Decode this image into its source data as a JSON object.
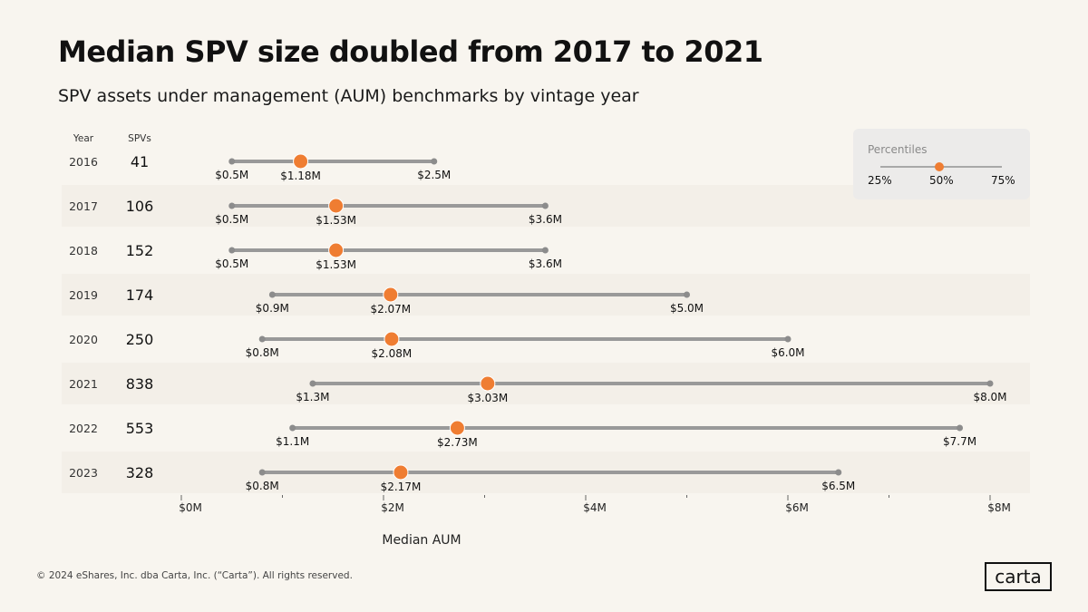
{
  "title": "Median SPV size doubled from 2017 to 2021",
  "subtitle": "SPV assets under management (AUM) benchmarks by vintage year",
  "legend": {
    "title": "Percentiles",
    "labels": [
      "25%",
      "50%",
      "75%"
    ]
  },
  "footer": "© 2024 eShares, Inc. dba Carta, Inc. (“Carta”). All rights reserved.",
  "logo": "carta",
  "colors": {
    "accent": "#ef7d32",
    "range_line": "#999999",
    "row_band": "#f3efe8"
  },
  "chart_data": {
    "type": "range-dot",
    "title": "Median SPV size doubled from 2017 to 2021",
    "subtitle": "SPV assets under management (AUM) benchmarks by vintage year",
    "column_headers": {
      "year": "Year",
      "count": "SPVs"
    },
    "xlabel": "Median AUM",
    "xlim": [
      0,
      8
    ],
    "x_ticks": [
      0,
      2,
      4,
      6,
      8
    ],
    "x_tick_labels": [
      "$0M",
      "$2M",
      "$4M",
      "$6M",
      "$8M"
    ],
    "rows": [
      {
        "year": "2016",
        "spvs": "41",
        "p25": 0.5,
        "p50": 1.18,
        "p75": 2.5,
        "p25_label": "$0.5M",
        "p50_label": "$1.18M",
        "p75_label": "$2.5M"
      },
      {
        "year": "2017",
        "spvs": "106",
        "p25": 0.5,
        "p50": 1.53,
        "p75": 3.6,
        "p25_label": "$0.5M",
        "p50_label": "$1.53M",
        "p75_label": "$3.6M"
      },
      {
        "year": "2018",
        "spvs": "152",
        "p25": 0.5,
        "p50": 1.53,
        "p75": 3.6,
        "p25_label": "$0.5M",
        "p50_label": "$1.53M",
        "p75_label": "$3.6M"
      },
      {
        "year": "2019",
        "spvs": "174",
        "p25": 0.9,
        "p50": 2.07,
        "p75": 5.0,
        "p25_label": "$0.9M",
        "p50_label": "$2.07M",
        "p75_label": "$5.0M"
      },
      {
        "year": "2020",
        "spvs": "250",
        "p25": 0.8,
        "p50": 2.08,
        "p75": 6.0,
        "p25_label": "$0.8M",
        "p50_label": "$2.08M",
        "p75_label": "$6.0M"
      },
      {
        "year": "2021",
        "spvs": "838",
        "p25": 1.3,
        "p50": 3.03,
        "p75": 8.0,
        "p25_label": "$1.3M",
        "p50_label": "$3.03M",
        "p75_label": "$8.0M"
      },
      {
        "year": "2022",
        "spvs": "553",
        "p25": 1.1,
        "p50": 2.73,
        "p75": 7.7,
        "p25_label": "$1.1M",
        "p50_label": "$2.73M",
        "p75_label": "$7.7M"
      },
      {
        "year": "2023",
        "spvs": "328",
        "p25": 0.8,
        "p50": 2.17,
        "p75": 6.5,
        "p25_label": "$0.8M",
        "p50_label": "$2.17M",
        "p75_label": "$6.5M"
      }
    ]
  }
}
